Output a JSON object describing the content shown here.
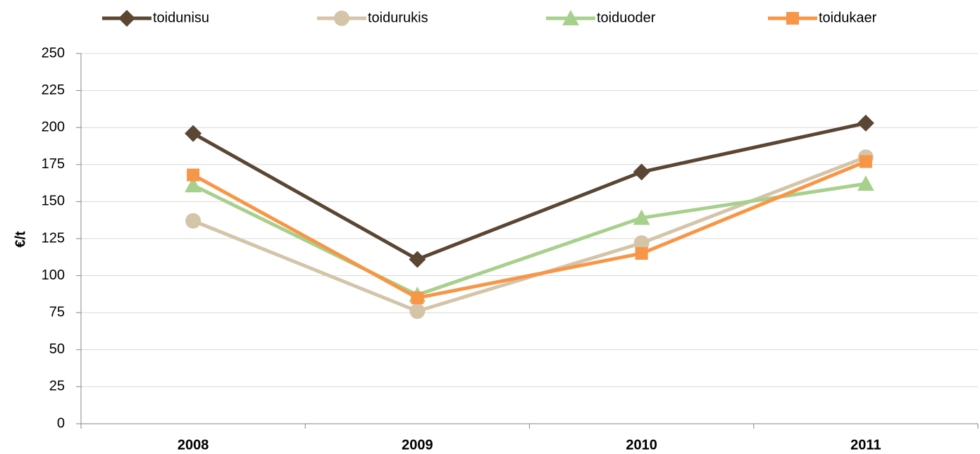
{
  "chart_data": {
    "type": "line",
    "y_label": "€/t",
    "categories": [
      "2008",
      "2009",
      "2010",
      "2011"
    ],
    "series": [
      {
        "name": "toidunisu",
        "color": "#5a4633",
        "marker": "diamond",
        "values": [
          196,
          111,
          170,
          203
        ]
      },
      {
        "name": "toidurukis",
        "color": "#d4c4a8",
        "marker": "circle",
        "values": [
          137,
          76,
          122,
          180
        ]
      },
      {
        "name": "toiduoder",
        "color": "#a8d08d",
        "marker": "triangle",
        "values": [
          161,
          87,
          139,
          162
        ]
      },
      {
        "name": "toidukaer",
        "color": "#f79646",
        "marker": "square",
        "values": [
          168,
          85,
          115,
          177
        ]
      }
    ],
    "ylim": [
      0,
      250
    ],
    "yticks": [
      0,
      25,
      50,
      75,
      100,
      125,
      150,
      175,
      200,
      225,
      250
    ],
    "grid": true,
    "legend": "top"
  }
}
